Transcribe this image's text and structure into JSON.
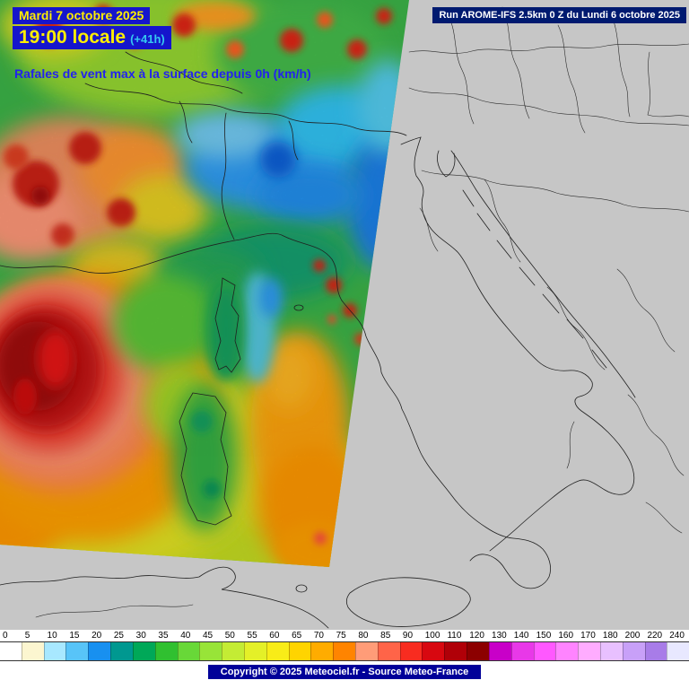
{
  "header": {
    "date": "Mardi 7 octobre 2025",
    "time": "19:00 locale",
    "offset": "(+41h)",
    "subtitle": "Rafales de vent max à la surface depuis 0h (km/h)",
    "run_info": "Run AROME-IFS 2.5km 0 Z du Lundi 6 octobre 2025"
  },
  "footer": {
    "copyright": "Copyright © 2025 Meteociel.fr - Source Meteo-France"
  },
  "colors": {
    "overlay_bg": "#1515cc",
    "date_text": "#ffee00",
    "offset_text": "#35c8f0",
    "subtitle_text": "#2222ee",
    "run_bg": "#001a70",
    "run_text": "#ffffff",
    "sea_gray": "#c6c6c6",
    "copyright_bg": "#000099",
    "copyright_text": "#ffffff"
  },
  "legend": {
    "unit": "km/h",
    "values": [
      0,
      5,
      10,
      15,
      20,
      25,
      30,
      35,
      40,
      45,
      50,
      55,
      60,
      65,
      70,
      75,
      80,
      85,
      90,
      100,
      110,
      120,
      130,
      140,
      150,
      160,
      170,
      180,
      200,
      220,
      240
    ],
    "colors": [
      "#ffffff",
      "#fcf6d0",
      "#a8e8ff",
      "#58c4f8",
      "#1890f0",
      "#009890",
      "#00a858",
      "#30c030",
      "#68d838",
      "#98e438",
      "#c4ec34",
      "#e4f028",
      "#f8ec18",
      "#ffd400",
      "#ffac00",
      "#ff8400",
      "#ff9c78",
      "#ff6448",
      "#f82c20",
      "#d80810",
      "#b00008",
      "#8c0000",
      "#c800c8",
      "#e838e8",
      "#ff58ff",
      "#ff84ff",
      "#ffacff",
      "#e8c0ff",
      "#c8a0f8",
      "#a87ce8",
      "#e8e8ff"
    ]
  }
}
